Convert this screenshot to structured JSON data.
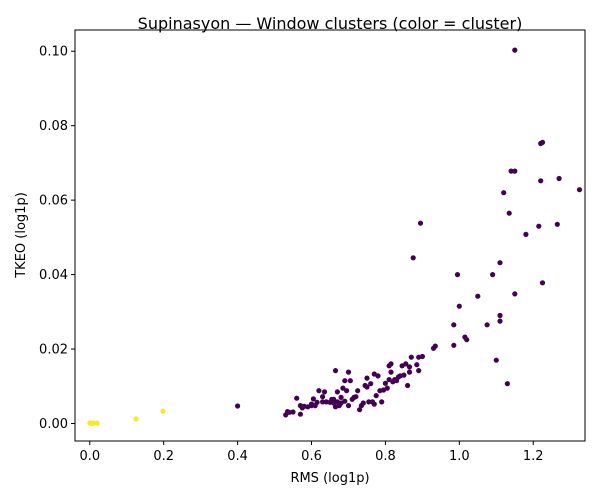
{
  "chart_data": {
    "type": "scatter",
    "title": "Supinasyon — Window clusters (color = cluster)",
    "xlabel": "RMS (log1p)",
    "ylabel": "TKEO (log1p)",
    "xlim": [
      -0.04,
      1.34
    ],
    "ylim": [
      -0.0047,
      0.1057
    ],
    "xticks": [
      0.0,
      0.2,
      0.4,
      0.6,
      0.8,
      1.0,
      1.2
    ],
    "xtick_labels": [
      "0.0",
      "0.2",
      "0.4",
      "0.6",
      "0.8",
      "1.0",
      "1.2"
    ],
    "yticks": [
      0.0,
      0.02,
      0.04,
      0.06,
      0.08,
      0.1
    ],
    "ytick_labels": [
      "0.00",
      "0.02",
      "0.04",
      "0.06",
      "0.08",
      "0.10"
    ],
    "grid": false,
    "legend": "none",
    "colors": {
      "cluster_0": "#440154",
      "cluster_1": "#fde725"
    },
    "series": [
      {
        "color": "#440154",
        "points": [
          [
            0.4,
            0.0047
          ],
          [
            0.53,
            0.0023
          ],
          [
            0.535,
            0.0032
          ],
          [
            0.54,
            0.003
          ],
          [
            0.55,
            0.0031
          ],
          [
            0.56,
            0.0068
          ],
          [
            0.57,
            0.0048
          ],
          [
            0.57,
            0.0025
          ],
          [
            0.575,
            0.0042
          ],
          [
            0.58,
            0.0046
          ],
          [
            0.59,
            0.0045
          ],
          [
            0.6,
            0.0048
          ],
          [
            0.6,
            0.0052
          ],
          [
            0.605,
            0.0066
          ],
          [
            0.61,
            0.0048
          ],
          [
            0.615,
            0.0057
          ],
          [
            0.62,
            0.0088
          ],
          [
            0.63,
            0.0072
          ],
          [
            0.63,
            0.0058
          ],
          [
            0.635,
            0.0085
          ],
          [
            0.64,
            0.0058
          ],
          [
            0.65,
            0.0057
          ],
          [
            0.655,
            0.0065
          ],
          [
            0.66,
            0.0055
          ],
          [
            0.66,
            0.0065
          ],
          [
            0.665,
            0.0045
          ],
          [
            0.665,
            0.0142
          ],
          [
            0.67,
            0.0085
          ],
          [
            0.67,
            0.0058
          ],
          [
            0.675,
            0.0048
          ],
          [
            0.68,
            0.0055
          ],
          [
            0.68,
            0.007
          ],
          [
            0.685,
            0.0095
          ],
          [
            0.69,
            0.0115
          ],
          [
            0.69,
            0.006
          ],
          [
            0.695,
            0.0088
          ],
          [
            0.7,
            0.0048
          ],
          [
            0.7,
            0.0138
          ],
          [
            0.705,
            0.0115
          ],
          [
            0.71,
            0.0065
          ],
          [
            0.715,
            0.007
          ],
          [
            0.72,
            0.0072
          ],
          [
            0.725,
            0.0088
          ],
          [
            0.73,
            0.0037
          ],
          [
            0.735,
            0.0048
          ],
          [
            0.74,
            0.0055
          ],
          [
            0.745,
            0.0102
          ],
          [
            0.75,
            0.0098
          ],
          [
            0.75,
            0.0122
          ],
          [
            0.755,
            0.0058
          ],
          [
            0.76,
            0.0107
          ],
          [
            0.765,
            0.0058
          ],
          [
            0.77,
            0.0052
          ],
          [
            0.77,
            0.0133
          ],
          [
            0.775,
            0.0075
          ],
          [
            0.78,
            0.0128
          ],
          [
            0.785,
            0.0088
          ],
          [
            0.79,
            0.0058
          ],
          [
            0.795,
            0.009
          ],
          [
            0.8,
            0.0108
          ],
          [
            0.805,
            0.0095
          ],
          [
            0.81,
            0.0155
          ],
          [
            0.81,
            0.0118
          ],
          [
            0.815,
            0.0138
          ],
          [
            0.815,
            0.016
          ],
          [
            0.82,
            0.0112
          ],
          [
            0.825,
            0.0118
          ],
          [
            0.83,
            0.0115
          ],
          [
            0.835,
            0.0125
          ],
          [
            0.84,
            0.0128
          ],
          [
            0.845,
            0.0155
          ],
          [
            0.85,
            0.013
          ],
          [
            0.855,
            0.016
          ],
          [
            0.86,
            0.0102
          ],
          [
            0.865,
            0.0138
          ],
          [
            0.865,
            0.0152
          ],
          [
            0.87,
            0.0178
          ],
          [
            0.875,
            0.0445
          ],
          [
            0.885,
            0.0158
          ],
          [
            0.89,
            0.0142
          ],
          [
            0.89,
            0.0178
          ],
          [
            0.895,
            0.0538
          ],
          [
            0.9,
            0.018
          ],
          [
            0.93,
            0.0202
          ],
          [
            0.935,
            0.0208
          ],
          [
            0.985,
            0.0265
          ],
          [
            0.985,
            0.021
          ],
          [
            0.995,
            0.04
          ],
          [
            1.0,
            0.0315
          ],
          [
            1.015,
            0.0232
          ],
          [
            1.02,
            0.0225
          ],
          [
            1.05,
            0.0342
          ],
          [
            1.075,
            0.0265
          ],
          [
            1.09,
            0.04
          ],
          [
            1.1,
            0.017
          ],
          [
            1.11,
            0.0432
          ],
          [
            1.11,
            0.029
          ],
          [
            1.11,
            0.0275
          ],
          [
            1.12,
            0.062
          ],
          [
            1.13,
            0.0107
          ],
          [
            1.135,
            0.0565
          ],
          [
            1.14,
            0.0678
          ],
          [
            1.15,
            0.1003
          ],
          [
            1.15,
            0.0678
          ],
          [
            1.15,
            0.0348
          ],
          [
            1.18,
            0.0508
          ],
          [
            1.215,
            0.053
          ],
          [
            1.22,
            0.0652
          ],
          [
            1.22,
            0.0752
          ],
          [
            1.225,
            0.0755
          ],
          [
            1.225,
            0.0378
          ],
          [
            1.265,
            0.0535
          ],
          [
            1.27,
            0.0658
          ],
          [
            1.325,
            0.0628
          ]
        ]
      },
      {
        "color": "#fde725",
        "points": [
          [
            0.0,
            0.0001
          ],
          [
            0.002,
            0.0002
          ],
          [
            0.005,
            0.0
          ],
          [
            0.01,
            0.0001
          ],
          [
            0.02,
            0.0001
          ],
          [
            0.125,
            0.0012
          ],
          [
            0.198,
            0.0033
          ]
        ]
      }
    ]
  }
}
